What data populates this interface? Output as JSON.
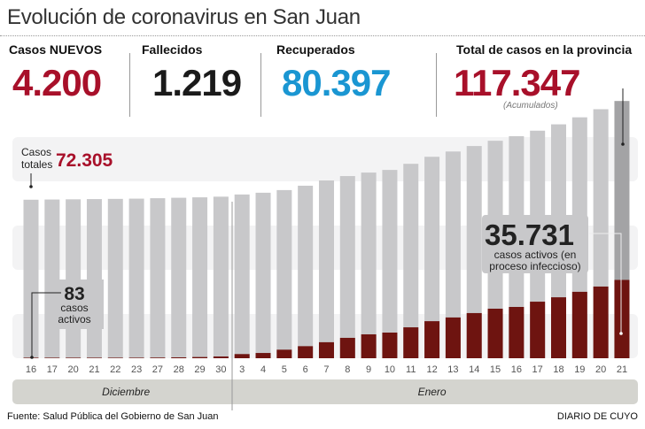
{
  "title": "Evolución de coronavirus en San Juan",
  "kpis": [
    {
      "label": "Casos NUEVOS",
      "value": "4.200",
      "color": "#a8102a"
    },
    {
      "label": "Fallecidos",
      "value": "1.219",
      "color": "#1a1a1a"
    },
    {
      "label": "Recuperados",
      "value": "80.397",
      "color": "#1a96d2"
    },
    {
      "label": "Total de casos en la provincia",
      "value": "117.347",
      "color": "#a8102a",
      "note": "(Acumulados)"
    }
  ],
  "chart_data": {
    "type": "bar",
    "stacked_overlay": true,
    "categories": [
      "16",
      "17",
      "20",
      "21",
      "22",
      "23",
      "27",
      "28",
      "29",
      "30",
      "3",
      "4",
      "5",
      "6",
      "7",
      "8",
      "9",
      "10",
      "11",
      "12",
      "13",
      "14",
      "15",
      "16",
      "17",
      "18",
      "19",
      "20",
      "21"
    ],
    "months": [
      {
        "label": "Diciembre",
        "from": 0,
        "to": 9
      },
      {
        "label": "Enero",
        "from": 10,
        "to": 28
      }
    ],
    "series": [
      {
        "name": "Casos totales",
        "color": "#c8c8ca",
        "values": [
          72305,
          72400,
          72500,
          72600,
          72700,
          72800,
          73000,
          73200,
          73400,
          73700,
          74700,
          75500,
          76700,
          78700,
          81100,
          83100,
          84700,
          85900,
          88700,
          91900,
          94300,
          96800,
          99200,
          101300,
          103800,
          106700,
          109900,
          113600,
          117347
        ]
      },
      {
        "name": "casos activos",
        "color": "#6e1410",
        "values": [
          83,
          100,
          120,
          150,
          180,
          220,
          300,
          400,
          550,
          800,
          1900,
          2400,
          3900,
          5500,
          7300,
          9300,
          10900,
          11700,
          14100,
          16900,
          18600,
          20600,
          22600,
          23400,
          25800,
          27800,
          30300,
          32700,
          35731
        ]
      }
    ],
    "annotations": {
      "total_label": "Casos\ntotales",
      "total_label_1": "Casos",
      "total_label_2": "totales",
      "total_value": "72.305",
      "active_start_value": "83",
      "active_start_label_1": "casos",
      "active_start_label_2": "activos",
      "active_end_value": "35.731",
      "active_end_label_1": "casos activos (en",
      "active_end_label_2": "proceso infeccioso)"
    },
    "ylim": [
      0,
      120000
    ],
    "grid": false
  },
  "footer": {
    "source": "Fuente: Salud Pública del Gobierno de San Juan",
    "brand": "DIARIO DE CUYO"
  }
}
